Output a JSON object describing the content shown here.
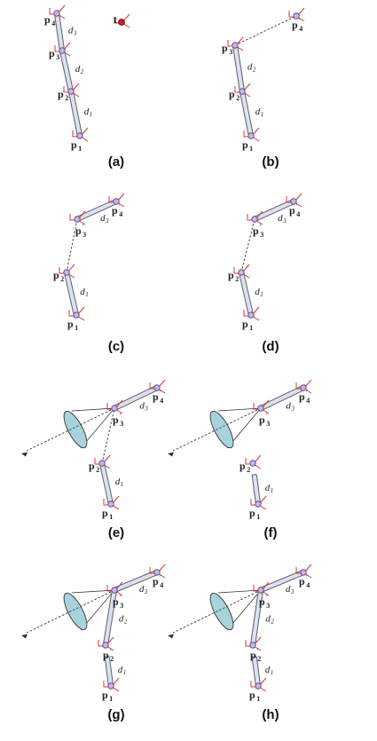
{
  "panels": [
    {
      "id": "a",
      "caption": "(a)",
      "joints": [
        {
          "label": "p",
          "sub": "1",
          "prime": false
        },
        {
          "label": "p",
          "sub": "2",
          "prime": false
        },
        {
          "label": "p",
          "sub": "3",
          "prime": false
        },
        {
          "label": "p",
          "sub": "4",
          "prime": false
        }
      ],
      "segments": [
        {
          "label": "d",
          "sub": "1"
        },
        {
          "label": "d",
          "sub": "2"
        },
        {
          "label": "d",
          "sub": "3"
        }
      ],
      "target": {
        "label": "t"
      }
    },
    {
      "id": "b",
      "caption": "(b)",
      "joints": [
        {
          "label": "p",
          "sub": "1",
          "prime": false
        },
        {
          "label": "p",
          "sub": "2",
          "prime": false
        },
        {
          "label": "p",
          "sub": "3",
          "prime": false
        },
        {
          "label": "p",
          "sub": "4",
          "prime": true
        }
      ],
      "segments": [
        {
          "label": "d",
          "sub": "1"
        },
        {
          "label": "d",
          "sub": "2"
        }
      ]
    },
    {
      "id": "c",
      "caption": "(c)",
      "joints": [
        {
          "label": "p",
          "sub": "1",
          "prime": false
        },
        {
          "label": "p",
          "sub": "2",
          "prime": false
        },
        {
          "label": "p",
          "sub": "3",
          "prime": true
        },
        {
          "label": "p",
          "sub": "4",
          "prime": true
        }
      ],
      "segments": [
        {
          "label": "d",
          "sub": "1"
        },
        {
          "label": "d",
          "sub": "3"
        }
      ]
    },
    {
      "id": "d",
      "caption": "(d)",
      "joints": [
        {
          "label": "p",
          "sub": "1",
          "prime": false
        },
        {
          "label": "p",
          "sub": "2",
          "prime": false
        },
        {
          "label": "p",
          "sub": "3",
          "prime": true
        },
        {
          "label": "p",
          "sub": "4",
          "prime": true
        }
      ],
      "segments": [
        {
          "label": "d",
          "sub": "1"
        },
        {
          "label": "d",
          "sub": "3"
        }
      ]
    },
    {
      "id": "e",
      "caption": "(e)",
      "joints": [
        {
          "label": "p",
          "sub": "1",
          "prime": false
        },
        {
          "label": "p",
          "sub": "2",
          "prime": false
        },
        {
          "label": "p",
          "sub": "3",
          "prime": true
        },
        {
          "label": "p",
          "sub": "4",
          "prime": true
        }
      ],
      "segments": [
        {
          "label": "d",
          "sub": "1"
        },
        {
          "label": "d",
          "sub": "3"
        }
      ]
    },
    {
      "id": "f",
      "caption": "(f)",
      "joints": [
        {
          "label": "p",
          "sub": "1",
          "prime": false
        },
        {
          "label": "p",
          "sub": "2",
          "prime": false
        },
        {
          "label": "p",
          "sub": "3",
          "prime": true
        },
        {
          "label": "p",
          "sub": "4",
          "prime": true
        }
      ],
      "segments": [
        {
          "label": "d",
          "sub": "1"
        },
        {
          "label": "d",
          "sub": "3"
        }
      ]
    },
    {
      "id": "g",
      "caption": "(g)",
      "joints": [
        {
          "label": "p",
          "sub": "1",
          "prime": false
        },
        {
          "label": "p",
          "sub": "2",
          "prime": true
        },
        {
          "label": "p",
          "sub": "3",
          "prime": true
        },
        {
          "label": "p",
          "sub": "4",
          "prime": true
        }
      ],
      "segments": [
        {
          "label": "d",
          "sub": "1"
        },
        {
          "label": "d",
          "sub": "2"
        },
        {
          "label": "d",
          "sub": "3"
        }
      ]
    },
    {
      "id": "h",
      "caption": "(h)",
      "joints": [
        {
          "label": "p",
          "sub": "1",
          "prime": false
        },
        {
          "label": "p",
          "sub": "2",
          "prime": true
        },
        {
          "label": "p",
          "sub": "3",
          "prime": true
        },
        {
          "label": "p",
          "sub": "4",
          "prime": true
        }
      ],
      "segments": [
        {
          "label": "d",
          "sub": "1"
        },
        {
          "label": "d",
          "sub": "2"
        },
        {
          "label": "d",
          "sub": "3"
        }
      ]
    }
  ]
}
